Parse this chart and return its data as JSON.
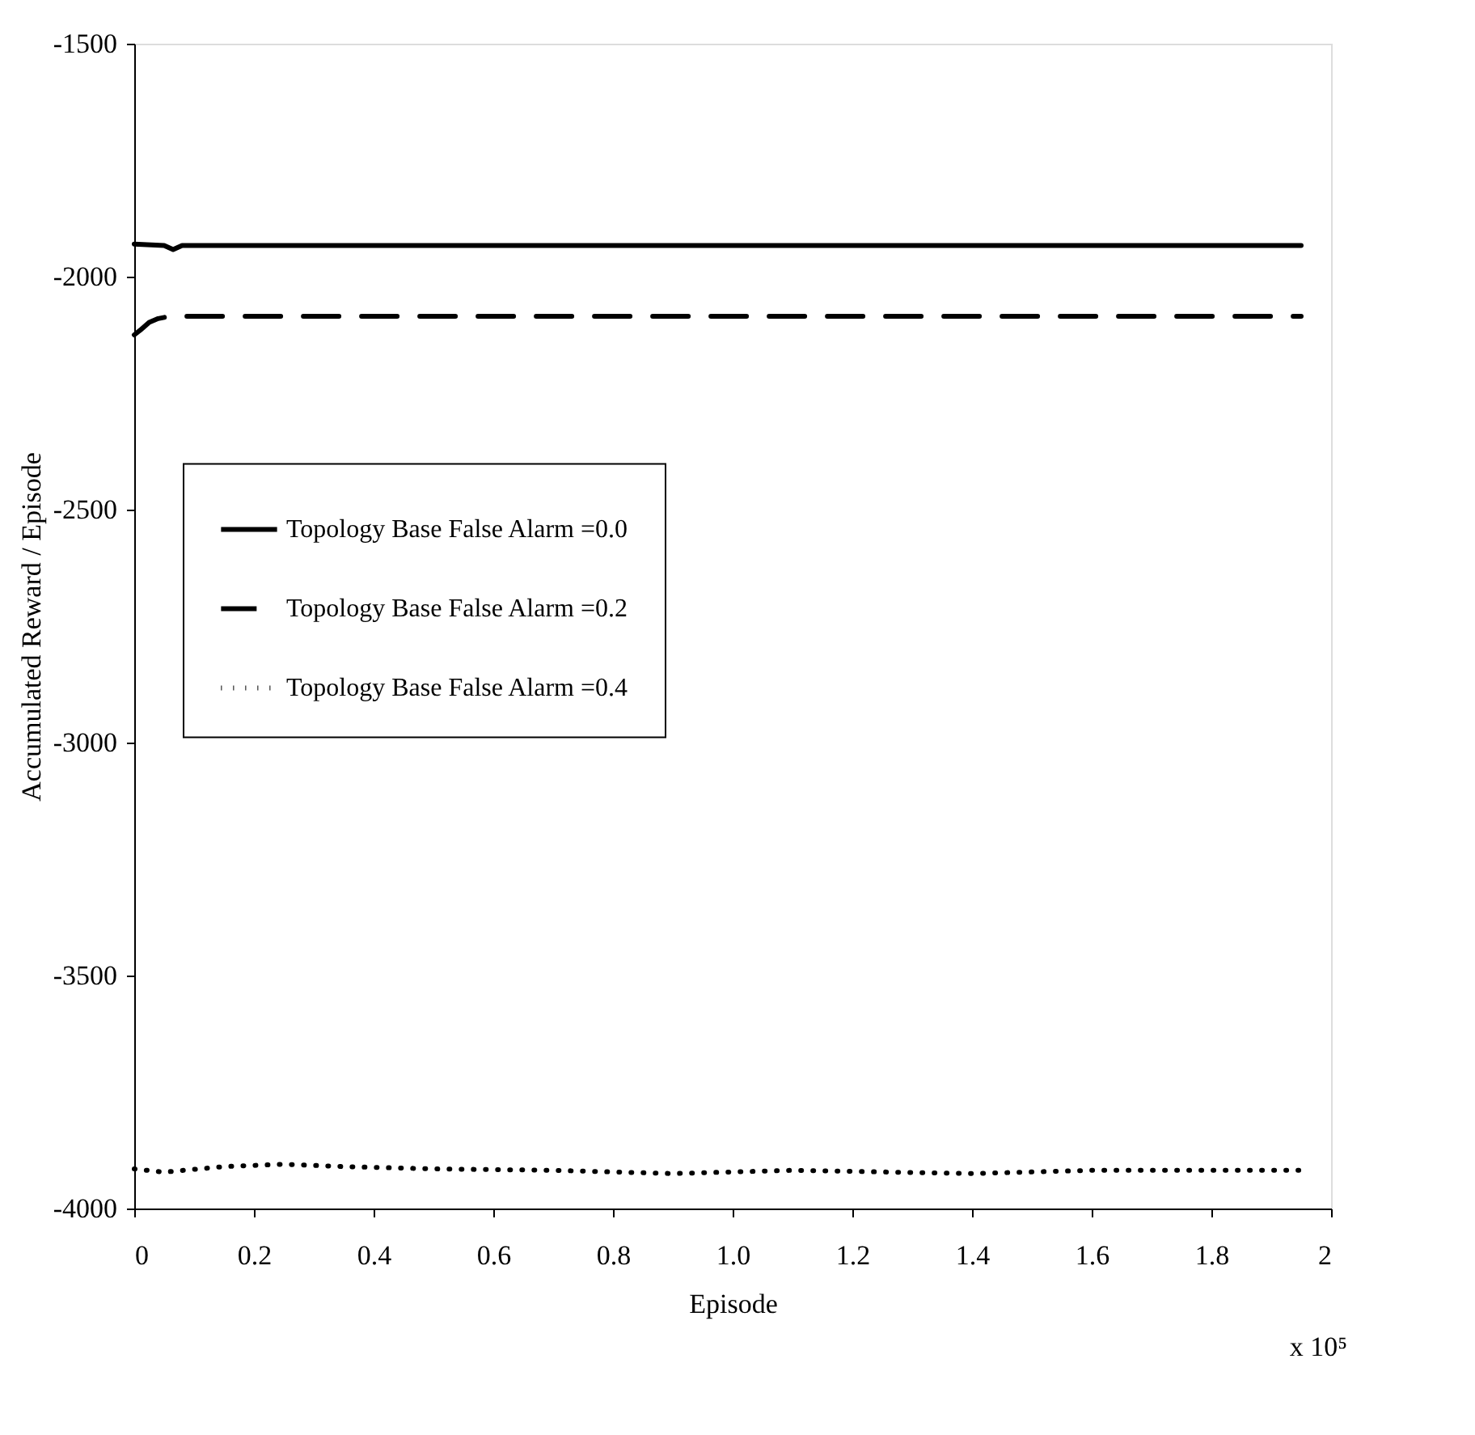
{
  "chart_data": {
    "type": "line",
    "xlabel": "Episode",
    "ylabel": "Accumulated Reward / Episode",
    "annotations": [
      "x 10⁵"
    ],
    "xlim": [
      0,
      2
    ],
    "xticks": [
      0,
      0.2,
      0.4,
      0.6,
      0.8,
      {
        "value": 1,
        "label": "1.0"
      },
      1.2,
      1.4,
      1.6,
      1.8,
      2
    ],
    "ylim": [
      -4000,
      -1500
    ],
    "yticks": [
      -4000,
      -3500,
      -3000,
      -2500,
      -2000,
      -1500
    ],
    "grid": false,
    "legend": "left",
    "marker": "none",
    "series": [
      {
        "name": "Topology Base False Alarm =0.0",
        "color": "#000000",
        "line_style": "solid",
        "x": [
          0,
          0.05,
          0.065,
          0.08,
          0.2,
          1.0,
          1.95
        ],
        "values": [
          -1930,
          -1933,
          -1942,
          -1933,
          -1933,
          -1933,
          -1933
        ]
      },
      {
        "name": "Topology Base False Alarm =0.2",
        "color": "#000000",
        "line_style": "dashed",
        "x": [
          0,
          0.01,
          0.025,
          0.04,
          0.06,
          0.1,
          0.5,
          1.0,
          1.95
        ],
        "values": [
          -2125,
          -2115,
          -2098,
          -2090,
          -2085,
          -2085,
          -2085,
          -2085,
          -2085
        ]
      },
      {
        "name": "Topology Base False Alarm =0.4",
        "color": "#000000",
        "line_style": "dotted",
        "x": [
          0,
          0.05,
          0.15,
          0.25,
          0.35,
          0.5,
          0.7,
          0.9,
          1.1,
          1.4,
          1.6,
          1.95
        ],
        "values": [
          -3915,
          -3922,
          -3910,
          -3905,
          -3910,
          -3915,
          -3918,
          -3925,
          -3918,
          -3925,
          -3918,
          -3918
        ]
      }
    ]
  }
}
